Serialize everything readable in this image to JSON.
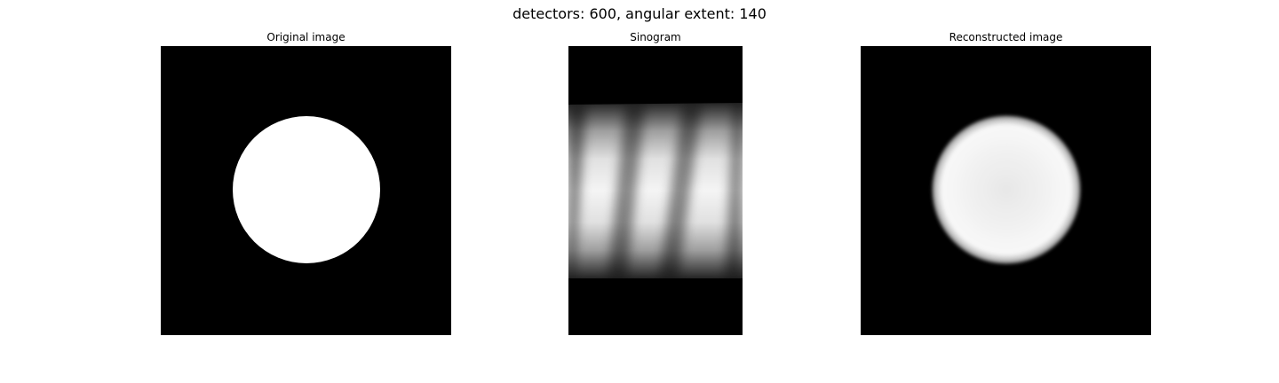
{
  "figure": {
    "suptitle": "detectors: 600, angular extent: 140"
  },
  "panels": [
    {
      "title": "Original image"
    },
    {
      "title": "Sinogram"
    },
    {
      "title": "Reconstructed image"
    }
  ]
}
